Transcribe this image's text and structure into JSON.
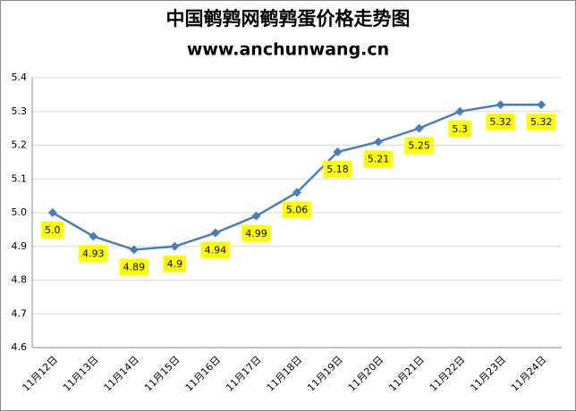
{
  "chart_data": {
    "type": "line",
    "title": "中国鹌鹑网鹌鹑蛋价格走势图",
    "subtitle": "www.anchunwang.cn",
    "categories": [
      "11月12日",
      "11月13日",
      "11月14日",
      "11月15日",
      "11月16日",
      "11月17日",
      "11月18日",
      "11月19日",
      "11月20日",
      "11月21日",
      "11月22日",
      "11月23日",
      "11月24日"
    ],
    "series": [
      {
        "color": "#4a7ebb",
        "values": [
          5.0,
          4.93,
          4.89,
          4.9,
          4.94,
          4.99,
          5.06,
          5.18,
          5.21,
          5.25,
          5.3,
          5.32,
          5.32
        ],
        "value_labels": [
          "5.0",
          "4.93",
          "4.89",
          "4.9",
          "4.94",
          "4.99",
          "5.06",
          "5.18",
          "5.21",
          "5.25",
          "5.3",
          "5.32",
          "5.32"
        ]
      }
    ],
    "ylim": [
      4.6,
      5.4
    ],
    "yticks": [
      4.6,
      4.7,
      4.8,
      4.9,
      {
        "value": 5.0,
        "label": "5.0"
      },
      5.1,
      5.2,
      5.3,
      5.4
    ],
    "grid": true,
    "label_color": "#ffff00",
    "title_color": "#ff0000"
  }
}
